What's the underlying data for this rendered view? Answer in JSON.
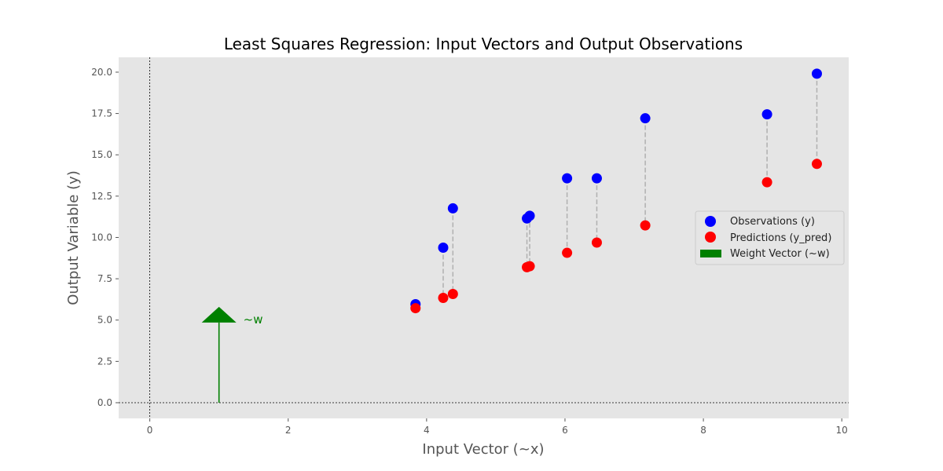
{
  "chart_data": {
    "type": "scatter",
    "title": "Least Squares Regression: Input Vectors and Output Observations",
    "xlabel": "Input Vector (~x)",
    "ylabel": "Output Variable (y)",
    "xlim": [
      -0.45,
      10.1
    ],
    "ylim": [
      -0.95,
      20.9
    ],
    "xticks": [
      0,
      2,
      4,
      6,
      8,
      10
    ],
    "yticks": [
      0.0,
      2.5,
      5.0,
      7.5,
      10.0,
      12.5,
      15.0,
      17.5,
      20.0
    ],
    "xtick_labels": [
      "0",
      "2",
      "4",
      "6",
      "8",
      "10"
    ],
    "ytick_labels": [
      "0.0",
      "2.5",
      "5.0",
      "7.5",
      "10.0",
      "12.5",
      "15.0",
      "17.5",
      "20.0"
    ],
    "grid": false,
    "background": "#e5e5e5",
    "legend_position": "right",
    "x": [
      3.84,
      4.24,
      4.38,
      5.45,
      5.49,
      6.03,
      6.46,
      7.16,
      8.92,
      9.64
    ],
    "series": [
      {
        "name": "Observations (y)",
        "color": "#0000ff",
        "marker": "circle",
        "values": [
          5.96,
          9.38,
          11.76,
          11.15,
          11.31,
          13.58,
          13.58,
          17.21,
          17.45,
          19.91
        ]
      },
      {
        "name": "Predictions (y_pred)",
        "color": "#ff0000",
        "marker": "circle",
        "values": [
          5.72,
          6.34,
          6.58,
          8.2,
          8.26,
          9.07,
          9.69,
          10.73,
          13.34,
          14.45
        ]
      }
    ],
    "residual_color": "#b0b0b0",
    "weight_vector": {
      "name": "Weight Vector (~w)",
      "label": "~w",
      "color": "#008000",
      "origin": [
        1.0,
        0.0
      ],
      "tip": [
        1.0,
        5.8
      ]
    },
    "reference_lines": {
      "x0": true,
      "y0": true
    }
  }
}
